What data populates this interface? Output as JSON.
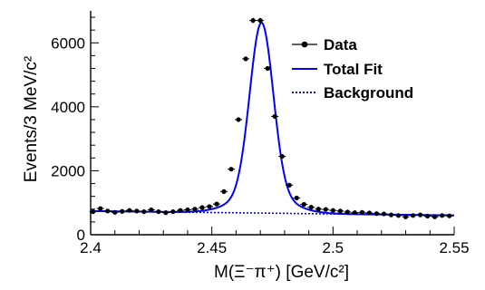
{
  "chart_data": {
    "type": "line",
    "xlabel": "M(Ξ⁻π⁺) [GeV/c²]",
    "ylabel": "Events/3 MeV/c²",
    "xlim": [
      2.4,
      2.55
    ],
    "ylim": [
      0,
      7000
    ],
    "x_ticks": [
      "2.4",
      "2.45",
      "2.5",
      "2.55"
    ],
    "y_ticks": [
      "0",
      "2000",
      "4000",
      "6000"
    ],
    "legend_position": "top-right",
    "series": [
      {
        "name": "Data",
        "kind": "points",
        "color": "#000000",
        "x": [
          2.401,
          2.404,
          2.407,
          2.41,
          2.413,
          2.416,
          2.419,
          2.422,
          2.425,
          2.428,
          2.431,
          2.434,
          2.437,
          2.44,
          2.443,
          2.446,
          2.449,
          2.452,
          2.455,
          2.458,
          2.461,
          2.464,
          2.467,
          2.47,
          2.473,
          2.476,
          2.479,
          2.482,
          2.485,
          2.488,
          2.491,
          2.494,
          2.497,
          2.5,
          2.503,
          2.506,
          2.509,
          2.512,
          2.515,
          2.518,
          2.521,
          2.524,
          2.527,
          2.53,
          2.533,
          2.536,
          2.539,
          2.542,
          2.545,
          2.548
        ],
        "y": [
          720,
          820,
          740,
          700,
          730,
          760,
          740,
          720,
          780,
          720,
          690,
          720,
          760,
          780,
          800,
          850,
          880,
          960,
          1350,
          2050,
          3600,
          5500,
          6700,
          6700,
          5200,
          3700,
          2450,
          1550,
          1150,
          950,
          860,
          800,
          790,
          760,
          740,
          710,
          690,
          700,
          680,
          660,
          650,
          620,
          600,
          560,
          600,
          620,
          580,
          560,
          600,
          590
        ]
      },
      {
        "name": "Total Fit",
        "kind": "curve",
        "color": "#0000ff",
        "style": "solid"
      },
      {
        "name": "Background",
        "kind": "curve",
        "color": "#0000ff",
        "style": "dotted"
      }
    ]
  }
}
